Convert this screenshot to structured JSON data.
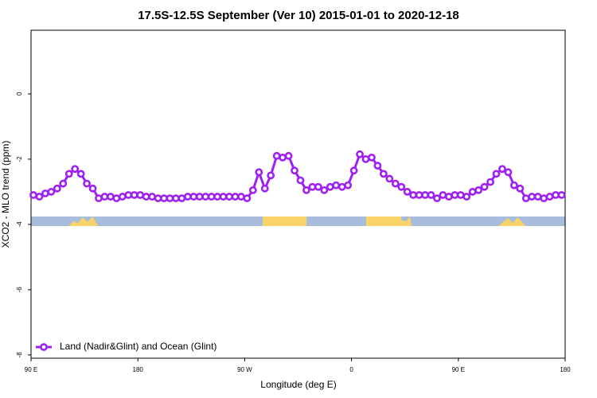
{
  "chart_data": {
    "type": "line",
    "title": "17.5S-12.5S September (Ver 10)   2015-01-01 to 2020-12-18",
    "xlabel": "Longitude (deg E)",
    "ylabel": "XCO2 - MLO trend (ppm)",
    "xlim": [
      90,
      540
    ],
    "ylim": [
      -8.1,
      1.95
    ],
    "xticks": [
      {
        "value": 90,
        "label": "90 E"
      },
      180,
      {
        "value": 270,
        "label": "90 W"
      },
      {
        "value": 360,
        "label": "0"
      },
      {
        "value": 450,
        "label": "90 E"
      },
      {
        "value": 540,
        "label": "180"
      }
    ],
    "yticks": [
      0,
      -2,
      -4,
      -6,
      -8
    ],
    "legend": "lower left",
    "x": [
      92,
      97,
      102,
      107,
      112,
      117,
      122,
      127,
      132,
      137,
      142,
      147,
      152,
      157,
      162,
      167,
      172,
      177,
      182,
      187,
      192,
      197,
      202,
      207,
      212,
      217,
      222,
      227,
      232,
      237,
      242,
      247,
      252,
      257,
      262,
      267,
      272,
      277,
      282,
      287,
      292,
      297,
      302,
      307,
      312,
      317,
      322,
      327,
      332,
      337,
      342,
      347,
      352,
      357,
      362,
      367,
      372,
      377,
      382,
      387,
      392,
      397,
      402,
      407,
      412,
      417,
      422,
      427,
      432,
      437,
      442,
      447,
      452,
      457,
      462,
      467,
      472,
      477,
      482,
      487,
      492,
      497,
      502,
      507,
      512,
      517,
      522,
      527,
      532,
      537
    ],
    "series": [
      {
        "name": "Land (Nadir&Glint) and Ocean (Glint)",
        "color": "#a020f0",
        "values": [
          -3.1,
          -3.15,
          -3.05,
          -3.0,
          -2.9,
          -2.75,
          -2.45,
          -2.3,
          -2.45,
          -2.75,
          -2.9,
          -3.2,
          -3.15,
          -3.15,
          -3.2,
          -3.15,
          -3.1,
          -3.1,
          -3.1,
          -3.15,
          -3.15,
          -3.2,
          -3.2,
          -3.2,
          -3.2,
          -3.2,
          -3.15,
          -3.15,
          -3.15,
          -3.15,
          -3.15,
          -3.15,
          -3.15,
          -3.15,
          -3.15,
          -3.15,
          -3.2,
          -2.95,
          -2.4,
          -2.9,
          -2.5,
          -1.9,
          -1.95,
          -1.9,
          -2.35,
          -2.65,
          -2.95,
          -2.85,
          -2.85,
          -2.95,
          -2.85,
          -2.8,
          -2.85,
          -2.8,
          -2.35,
          -1.85,
          -2.0,
          -1.95,
          -2.2,
          -2.45,
          -2.6,
          -2.75,
          -2.85,
          -3.0,
          -3.1,
          -3.1,
          -3.1,
          -3.1,
          -3.2,
          -3.1,
          -3.15,
          -3.1,
          -3.1,
          -3.15,
          -3.0,
          -2.95,
          -2.85,
          -2.7,
          -2.45,
          -2.3,
          -2.4,
          -2.8,
          -2.9,
          -3.2,
          -3.15,
          -3.15,
          -3.2,
          -3.15,
          -3.1,
          -3.1
        ]
      }
    ]
  }
}
